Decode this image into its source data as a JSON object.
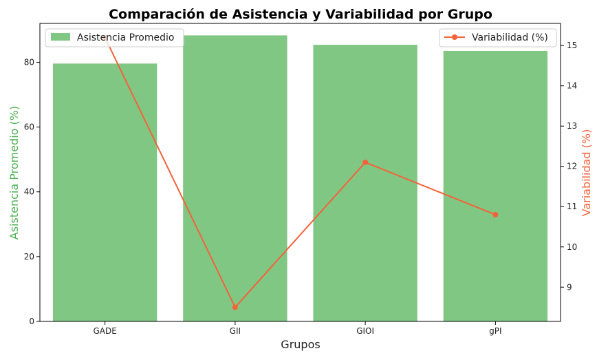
{
  "chart_data": {
    "type": "bar",
    "title": "Comparación de Asistencia y Variabilidad por Grupo",
    "xlabel": "Grupos",
    "ylabel_left": "Asistencia Promedio (%)",
    "ylabel_right": "Variabilidad (%)",
    "categories": [
      "GADE",
      "GII",
      "GIOI",
      "gPI"
    ],
    "series": [
      {
        "name": "Asistencia Promedio",
        "type": "bar",
        "axis": "left",
        "color": "#81c784",
        "values": [
          79.6,
          88.3,
          85.4,
          83.5
        ]
      },
      {
        "name": "Variabilidad (%)",
        "type": "line",
        "axis": "right",
        "color": "#f4623a",
        "values": [
          15.2,
          8.5,
          12.1,
          10.8
        ]
      }
    ],
    "ylim_left": [
      0,
      92
    ],
    "yticks_left": [
      0,
      20,
      40,
      60,
      80
    ],
    "ylim_right": [
      8.15,
      15.55
    ],
    "yticks_right": [
      9,
      10,
      11,
      12,
      13,
      14,
      15
    ],
    "left_label_color": "#4caf50",
    "right_label_color": "#f4623a",
    "legend_left_placement": "upper-left",
    "legend_right_placement": "upper-right",
    "grid": false
  }
}
